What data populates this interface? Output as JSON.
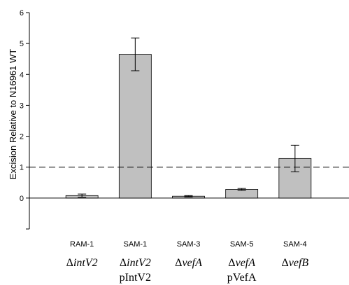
{
  "chart_data": {
    "type": "bar",
    "ylabel": "Excision Relative to N16961 WT",
    "ylim": [
      -1,
      6
    ],
    "yticks": [
      0,
      1,
      2,
      3,
      4,
      5,
      6
    ],
    "grid": false,
    "reference_line": {
      "y": 1,
      "style": "dashed"
    },
    "bar_color": "#c0c0c0",
    "categories": [
      "RAM-1",
      "SAM-1",
      "SAM-3",
      "SAM-5",
      "SAM-4"
    ],
    "genotype_labels": [
      {
        "prefix": "Δ",
        "name": "intV2",
        "extra": ""
      },
      {
        "prefix": "Δ",
        "name": "intV2",
        "extra": "pIntV2"
      },
      {
        "prefix": "Δ",
        "name": "vefA",
        "extra": ""
      },
      {
        "prefix": "Δ",
        "name": "vefA",
        "extra": "pVefA"
      },
      {
        "prefix": "Δ",
        "name": "vefB",
        "extra": ""
      }
    ],
    "values": [
      0.08,
      4.65,
      0.06,
      0.28,
      1.28
    ],
    "errors": [
      0.05,
      0.53,
      0.02,
      0.03,
      0.43
    ]
  }
}
